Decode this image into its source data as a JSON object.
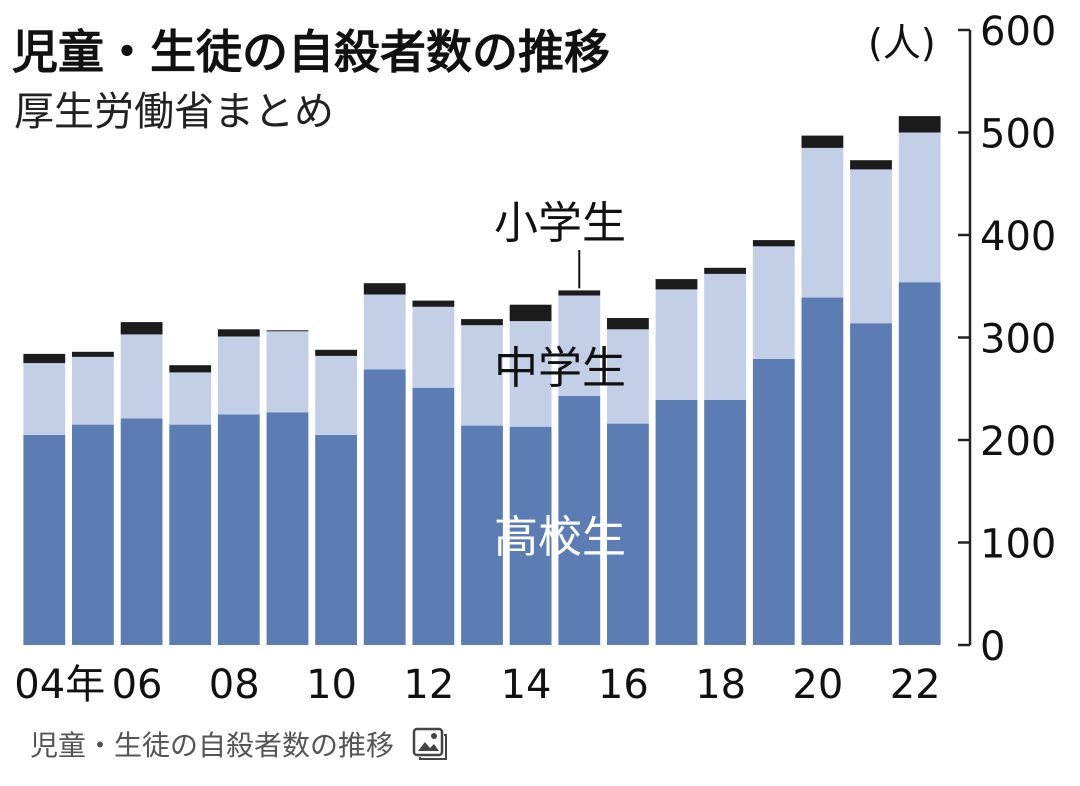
{
  "chart_data": {
    "type": "bar",
    "stacked": true,
    "title": "児童・生徒の自殺者数の推移",
    "subtitle": "厚生労働省まとめ",
    "unit": "(人)",
    "categories": [
      "04",
      "05",
      "06",
      "07",
      "08",
      "09",
      "10",
      "11",
      "12",
      "13",
      "14",
      "15",
      "16",
      "17",
      "18",
      "19",
      "20",
      "21",
      "22"
    ],
    "x_tick_labels": [
      {
        "index": 0,
        "label": "04年"
      },
      {
        "index": 2,
        "label": "06"
      },
      {
        "index": 4,
        "label": "08"
      },
      {
        "index": 6,
        "label": "10"
      },
      {
        "index": 8,
        "label": "12"
      },
      {
        "index": 10,
        "label": "14"
      },
      {
        "index": 12,
        "label": "16"
      },
      {
        "index": 14,
        "label": "18"
      },
      {
        "index": 16,
        "label": "20"
      },
      {
        "index": 18,
        "label": "22"
      }
    ],
    "y_ticks": [
      0,
      100,
      200,
      300,
      400,
      500,
      600
    ],
    "ylim": [
      0,
      600
    ],
    "y_axis_side": "right",
    "series": [
      {
        "name": "高校生",
        "color": "#5b7db4",
        "values": [
          205,
          215,
          221,
          215,
          225,
          227,
          205,
          269,
          251,
          214,
          213,
          243,
          216,
          239,
          239,
          279,
          339,
          314,
          354
        ]
      },
      {
        "name": "中学生",
        "color": "#c3cfe6",
        "values": [
          70,
          66,
          82,
          51,
          76,
          79,
          77,
          73,
          79,
          98,
          103,
          98,
          92,
          108,
          123,
          110,
          146,
          150,
          146
        ]
      },
      {
        "name": "小学生",
        "color": "#1c1c1c",
        "values": [
          9,
          5,
          12,
          7,
          7,
          1,
          6,
          11,
          6,
          6,
          16,
          5,
          11,
          10,
          6,
          6,
          12,
          9,
          16
        ]
      }
    ]
  },
  "caption": {
    "text": "児童・生徒の自殺者数の推移",
    "icon": "image-icon"
  }
}
